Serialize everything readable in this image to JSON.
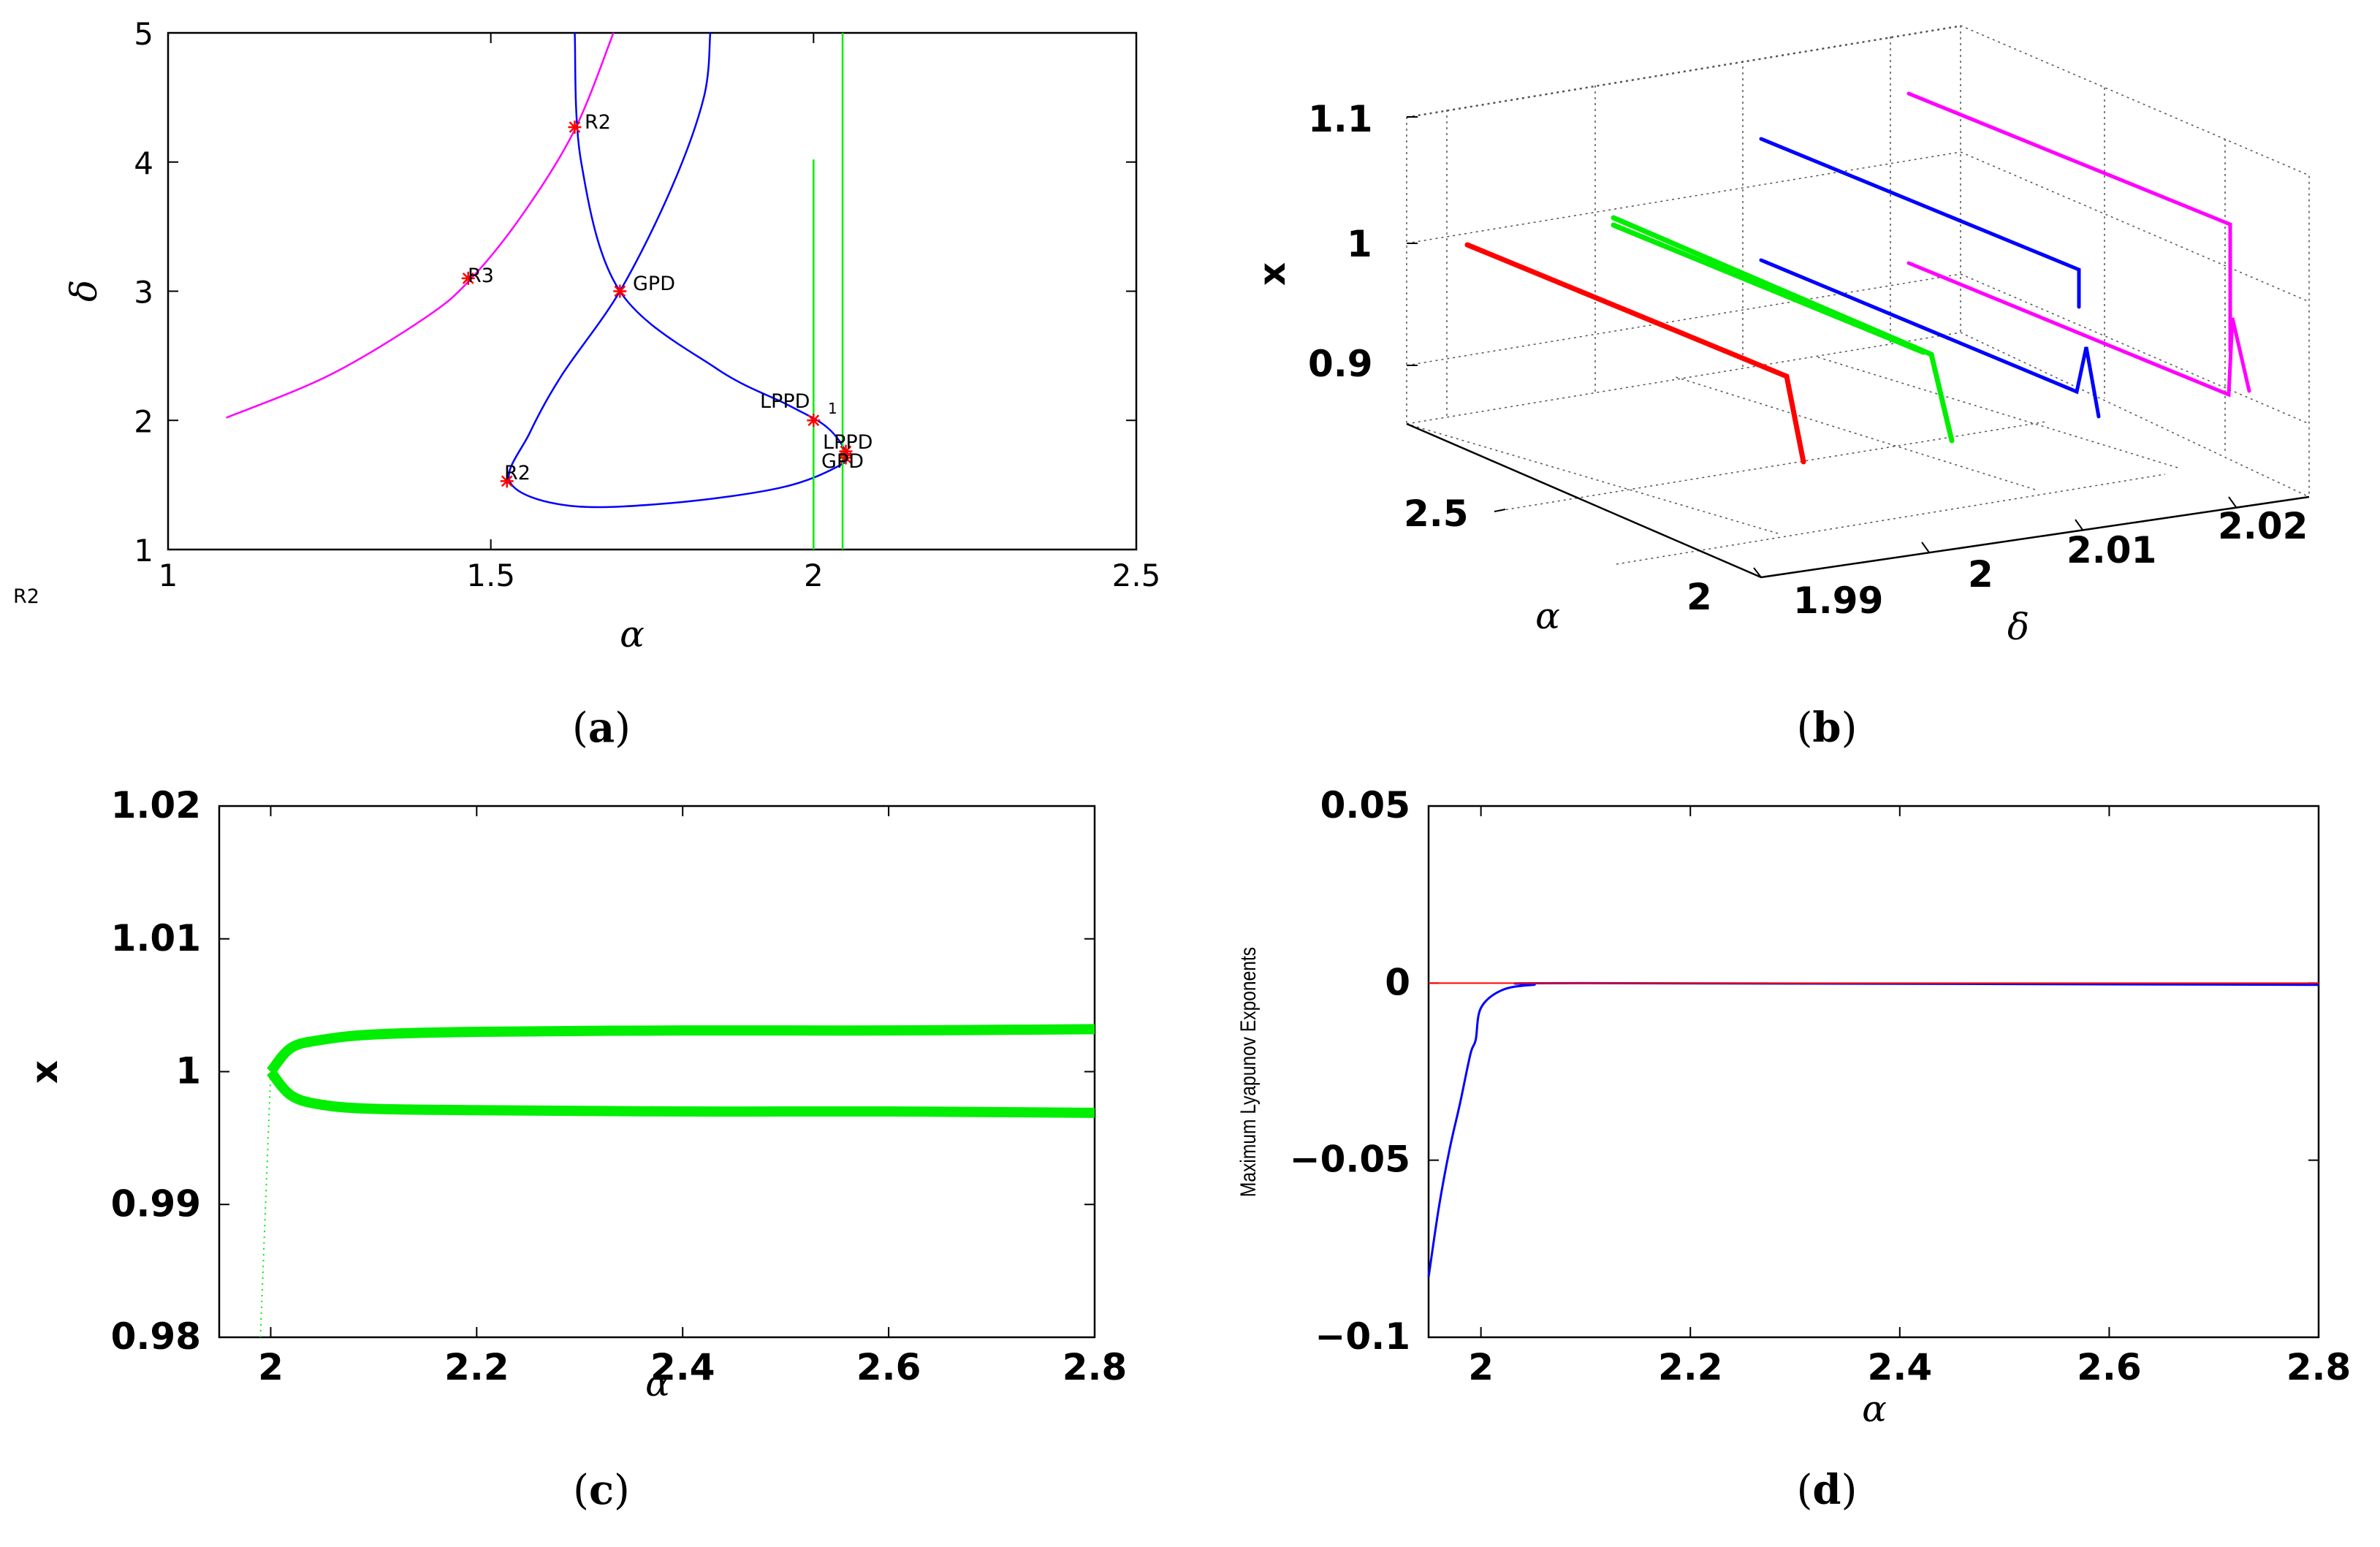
{
  "chart_data": [
    {
      "id": "a",
      "type": "line",
      "caption": "a",
      "xlabel": "α",
      "ylabel": "δ",
      "xlim": [
        1,
        2.5
      ],
      "ylim": [
        1,
        5
      ],
      "xticks": [
        "1",
        "1.5",
        "2",
        "2.5"
      ],
      "yticks": [
        "1",
        "2",
        "3",
        "4",
        "5"
      ],
      "stray_label": "R2",
      "series": [
        {
          "name": "magenta curve",
          "color": "#ff00ff",
          "x": [
            1.09,
            1.25,
            1.4,
            1.47,
            1.55,
            1.63,
            1.69
          ],
          "y": [
            2.02,
            2.35,
            2.8,
            3.1,
            3.6,
            4.25,
            5.0
          ]
        },
        {
          "name": "blue loop",
          "color": "#0000ff",
          "x": [
            1.63,
            1.64,
            1.7,
            1.85,
            1.96,
            2.02,
            2.05,
            2.04,
            1.95,
            1.78,
            1.62,
            1.53,
            1.56,
            1.61,
            1.7,
            1.78,
            1.83,
            1.84
          ],
          "y": [
            5.0,
            4.0,
            3.0,
            2.4,
            2.12,
            1.95,
            1.75,
            1.65,
            1.48,
            1.36,
            1.34,
            1.52,
            1.9,
            2.35,
            3.0,
            3.8,
            4.5,
            5.0
          ]
        },
        {
          "name": "green line 1",
          "color": "#00ee00",
          "x": [
            2.0,
            2.0
          ],
          "y": [
            1.0,
            4.02
          ]
        },
        {
          "name": "green line 2",
          "color": "#00ee00",
          "x": [
            2.045,
            2.045
          ],
          "y": [
            1.0,
            5.0
          ]
        }
      ],
      "points": [
        {
          "label": "R2",
          "x": 1.63,
          "y": 4.27
        },
        {
          "label": "R3",
          "x": 1.465,
          "y": 3.1
        },
        {
          "label": "GPD",
          "x": 1.7,
          "y": 3.0
        },
        {
          "label": "LPPD_1",
          "x": 2.0,
          "y": 2.0
        },
        {
          "label": "LPPD",
          "x": 2.05,
          "y": 1.76
        },
        {
          "label": "GPD",
          "x": 2.05,
          "y": 1.71
        },
        {
          "label": "R2",
          "x": 1.525,
          "y": 1.53
        }
      ],
      "annotations": [
        {
          "id": "r2_top",
          "text": "R2"
        },
        {
          "id": "r3",
          "text": "R3"
        },
        {
          "id": "gpd_mid",
          "text": "GPD"
        },
        {
          "id": "lppd1",
          "text": "LPPD",
          "sub": "1"
        },
        {
          "id": "lppd",
          "text": "LPPD"
        },
        {
          "id": "gpd_low",
          "text": "GPD"
        },
        {
          "id": "r2_low",
          "text": "R2"
        }
      ]
    },
    {
      "id": "b",
      "type": "line",
      "subtype": "3d",
      "caption": "b",
      "xlabel": "α",
      "ylabel": "δ",
      "zlabel": "x",
      "alpha_ticks": [
        "2",
        "2.5"
      ],
      "delta_ticks": [
        "1.99",
        "2",
        "2.01",
        "2.02"
      ],
      "z_ticks": [
        "0.9",
        "1",
        "1.1"
      ],
      "zlim": [
        0.85,
        1.1
      ],
      "series": [
        {
          "name": "δ = 1.99",
          "color": "#ff0000",
          "delta": 1.99,
          "alpha_range": [
            2.0,
            2.8
          ],
          "x_start": 1.0,
          "x_knee": 0.905,
          "x_end": 0.865
        },
        {
          "name": "δ = 2.00",
          "color": "#00ee00",
          "delta": 2.0,
          "alpha_range": [
            2.0,
            2.8
          ],
          "x_start": 1.0,
          "x_knee": 0.905,
          "x_end": 0.865
        },
        {
          "name": "δ = 2.01",
          "color": "#0000ff",
          "delta": 2.01,
          "alpha_range": [
            2.0,
            2.8
          ],
          "x_upper_start": 1.083,
          "x_upper_end": 1.003,
          "x_lower_start": 0.995,
          "x_lower_end": 0.9,
          "x_end": 0.865
        },
        {
          "name": "δ = 2.02",
          "color": "#ff00ff",
          "delta": 2.02,
          "alpha_range": [
            2.0,
            2.8
          ],
          "x_upper_start": 1.1,
          "x_upper_end": 1.01,
          "x_lower_start": 0.998,
          "x_lower_end": 0.905,
          "x_end": 0.87
        }
      ]
    },
    {
      "id": "c",
      "type": "line",
      "caption": "c",
      "xlabel": "α",
      "ylabel": "x",
      "xlim": [
        1.95,
        2.8
      ],
      "ylim": [
        0.98,
        1.02
      ],
      "xticks": [
        "2",
        "2.2",
        "2.4",
        "2.6",
        "2.8"
      ],
      "yticks": [
        "0.98",
        "0.99",
        "1",
        "1.01",
        "1.02"
      ],
      "series": [
        {
          "name": "upper branch",
          "color": "#00ee00",
          "x": [
            2.0,
            2.02,
            2.05,
            2.1,
            2.2,
            2.4,
            2.6,
            2.8
          ],
          "y": [
            1.0,
            1.0018,
            1.0024,
            1.0028,
            1.003,
            1.0031,
            1.0031,
            1.0032
          ]
        },
        {
          "name": "lower branch",
          "color": "#00ee00",
          "x": [
            2.0,
            2.02,
            2.05,
            2.1,
            2.2,
            2.4,
            2.6,
            2.8
          ],
          "y": [
            1.0,
            0.9982,
            0.9975,
            0.9972,
            0.9971,
            0.997,
            0.997,
            0.9969
          ]
        },
        {
          "name": "transient",
          "color": "#00ee00",
          "style": "dotted",
          "x": [
            1.99,
            2.0
          ],
          "y": [
            0.98,
            1.0
          ]
        }
      ]
    },
    {
      "id": "d",
      "type": "line",
      "caption": "d",
      "xlabel": "α",
      "ylabel": "Maximum Lyapunov Exponents",
      "xlim": [
        1.95,
        2.8
      ],
      "ylim": [
        -0.1,
        0.05
      ],
      "xticks": [
        "2",
        "2.2",
        "2.4",
        "2.6",
        "2.8"
      ],
      "yticks": [
        "−0.1",
        "−0.05",
        "0",
        "0.05"
      ],
      "series": [
        {
          "name": "MLE",
          "color": "#0000ff",
          "x": [
            1.95,
            1.96,
            1.97,
            1.98,
            1.99,
            1.995,
            2.0,
            2.02,
            2.05,
            2.1,
            2.8
          ],
          "y": [
            -0.083,
            -0.063,
            -0.047,
            -0.034,
            -0.02,
            -0.016,
            -0.007,
            -0.002,
            -0.0005,
            0.0,
            -0.0005
          ]
        },
        {
          "name": "zero",
          "color": "#ff0000",
          "x": [
            1.95,
            2.8
          ],
          "y": [
            0.0,
            0.0
          ]
        }
      ]
    }
  ]
}
